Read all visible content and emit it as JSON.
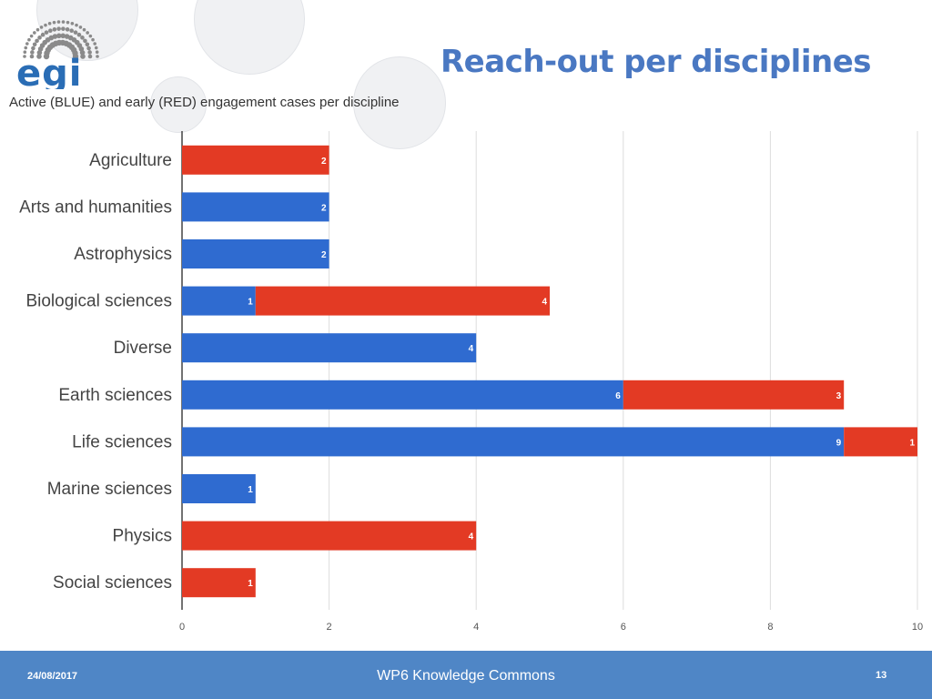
{
  "slide": {
    "title": "Reach-out per disciplines",
    "footer_date": "24/08/2017",
    "footer_center": "WP6 Knowledge Commons",
    "page_number": "13"
  },
  "logo": {
    "text": "egi",
    "color": "#2a6db5",
    "dot_color": "#8a8a8a"
  },
  "colors": {
    "active": "#2f6bd0",
    "early": "#e33a24",
    "grid": "#dddddd",
    "accent": "#4a78c2",
    "footer": "#4f86c6"
  },
  "chart_data": {
    "type": "bar",
    "orientation": "horizontal",
    "stacked": true,
    "title": "Active (BLUE) and early (RED) engagement cases per discipline",
    "categories": [
      "Agriculture",
      "Arts and humanities",
      "Astrophysics",
      "Biological sciences",
      "Diverse",
      "Earth sciences",
      "Life sciences",
      "Marine sciences",
      "Physics",
      "Social sciences"
    ],
    "series": [
      {
        "color": "#2f6bd0",
        "values": [
          0,
          2,
          2,
          1,
          4,
          6,
          9,
          1,
          0,
          0
        ]
      },
      {
        "color": "#e33a24",
        "values": [
          2,
          0,
          0,
          4,
          0,
          3,
          1,
          0,
          4,
          1
        ]
      }
    ],
    "xlim": [
      0,
      10
    ],
    "xticks": [
      0,
      2,
      4,
      6,
      8,
      10
    ],
    "grid": true,
    "data_labels": true
  }
}
